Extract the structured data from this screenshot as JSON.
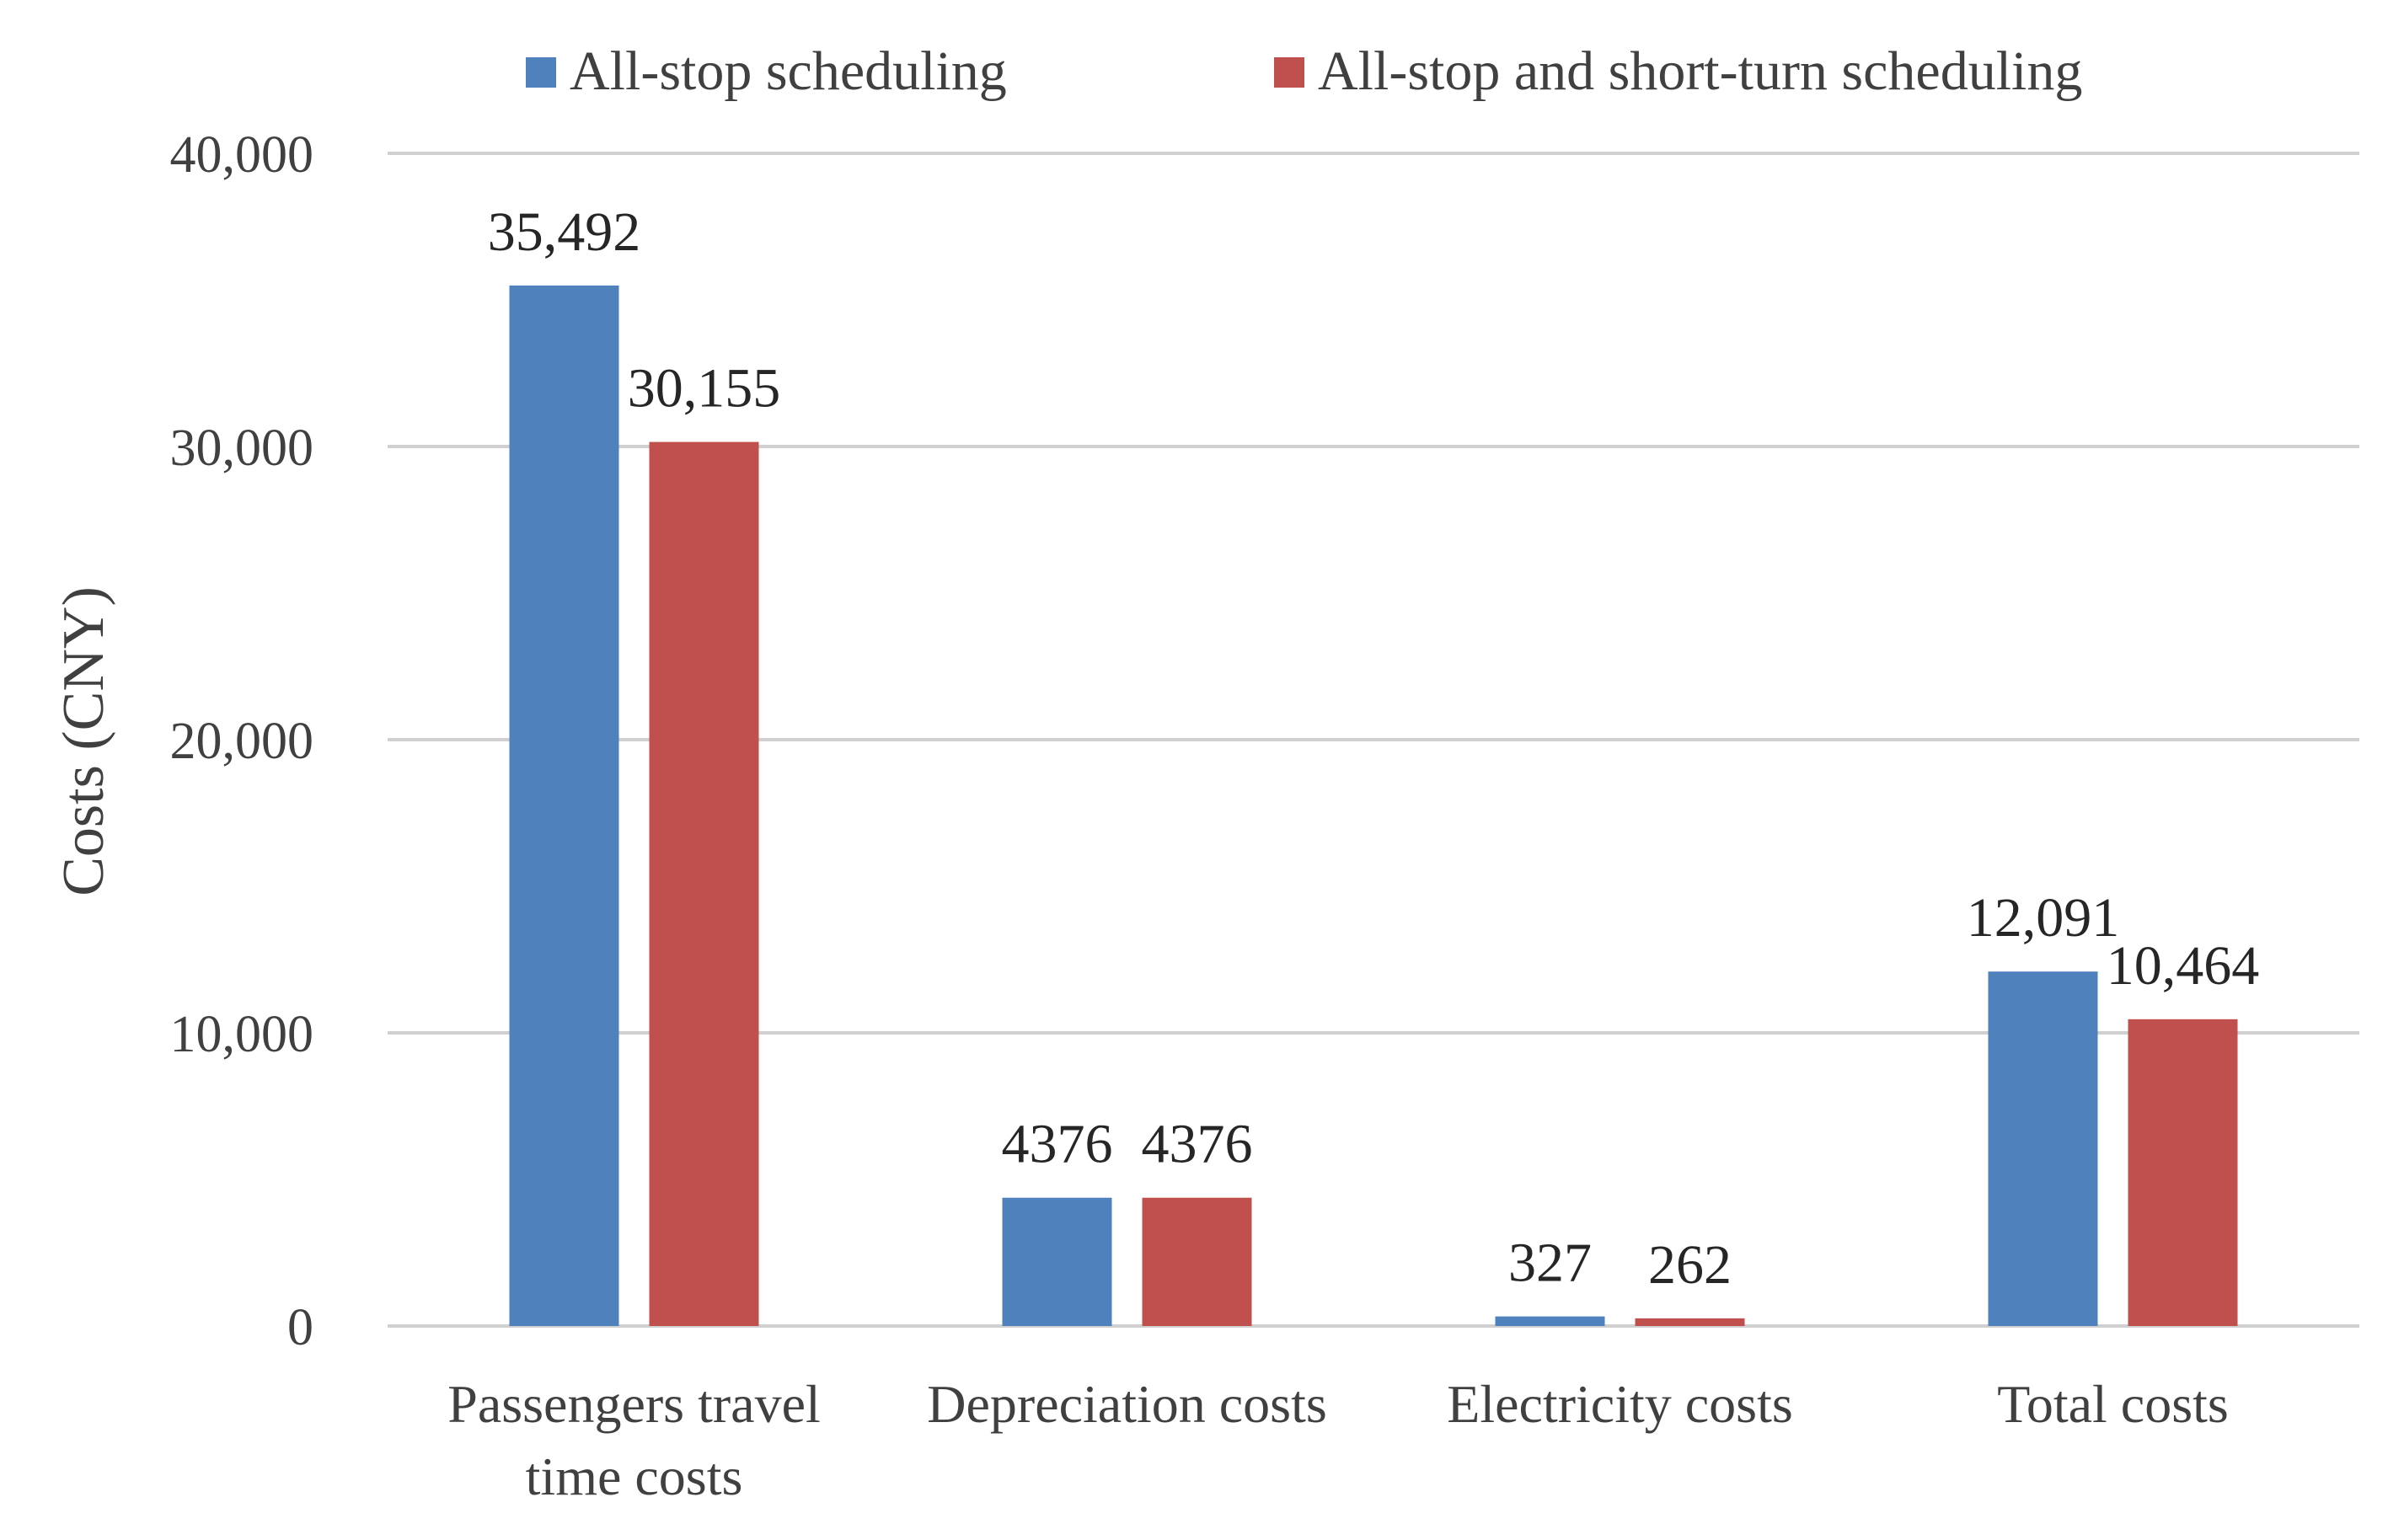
{
  "chart_data": {
    "type": "bar",
    "title": "",
    "xlabel": "",
    "ylabel": "Costs (CNY)",
    "ylim": [
      0,
      40000
    ],
    "yticks": [
      0,
      10000,
      20000,
      30000,
      40000
    ],
    "ytick_labels": [
      "0",
      "10,000",
      "20,000",
      "30,000",
      "40,000"
    ],
    "grid": true,
    "legend_position": "top",
    "categories": [
      [
        "Passengers travel",
        "time costs"
      ],
      [
        "Depreciation costs"
      ],
      [
        "Electricity costs"
      ],
      [
        "Total costs"
      ]
    ],
    "series": [
      {
        "name": "All-stop scheduling",
        "color": "#4F81BD",
        "values": [
          35492,
          4376,
          327,
          12091
        ],
        "labels": [
          "35,492",
          "4376",
          "327",
          "12,091"
        ]
      },
      {
        "name": "All-stop and short-turn scheduling",
        "color": "#C0504D",
        "values": [
          30155,
          4376,
          262,
          10464
        ],
        "labels": [
          "30,155",
          "4376",
          "262",
          "10,464"
        ]
      }
    ]
  }
}
